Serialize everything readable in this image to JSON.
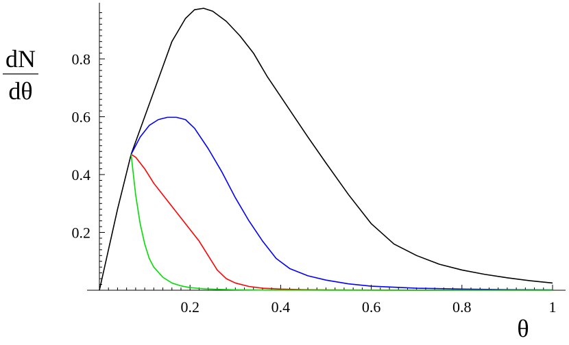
{
  "chart_data": {
    "type": "line",
    "title": "",
    "xlabel": "θ",
    "ylabel_top": "dN",
    "ylabel_bottom": "dθ",
    "xlim": [
      0,
      1
    ],
    "ylim": [
      0,
      0.98
    ],
    "xticks": [
      {
        "value": 0.2,
        "label": "0.2"
      },
      {
        "value": 0.4,
        "label": "0.4"
      },
      {
        "value": 0.6,
        "label": "0.6"
      },
      {
        "value": 0.8,
        "label": "0.8"
      },
      {
        "value": 1.0,
        "label": "1"
      }
    ],
    "yticks": [
      {
        "value": 0.2,
        "label": "0.2"
      },
      {
        "value": 0.4,
        "label": "0.4"
      },
      {
        "value": 0.6,
        "label": "0.6"
      },
      {
        "value": 0.8,
        "label": "0.8"
      }
    ],
    "grid": false,
    "legend": "none",
    "series": [
      {
        "color": "#000000",
        "x": [
          0,
          0.04,
          0.07,
          0.1,
          0.13,
          0.16,
          0.19,
          0.21,
          0.23,
          0.25,
          0.28,
          0.31,
          0.34,
          0.37,
          0.4,
          0.43,
          0.46,
          0.5,
          0.55,
          0.6,
          0.65,
          0.7,
          0.75,
          0.8,
          0.85,
          0.9,
          0.95,
          1.0
        ],
        "y": [
          0,
          0.28,
          0.47,
          0.6,
          0.73,
          0.86,
          0.94,
          0.97,
          0.975,
          0.965,
          0.93,
          0.88,
          0.82,
          0.74,
          0.67,
          0.6,
          0.53,
          0.44,
          0.33,
          0.23,
          0.16,
          0.12,
          0.09,
          0.07,
          0.055,
          0.043,
          0.033,
          0.025
        ]
      },
      {
        "color": "#0000ff",
        "x": [
          0.07,
          0.09,
          0.11,
          0.13,
          0.15,
          0.17,
          0.19,
          0.21,
          0.24,
          0.27,
          0.3,
          0.33,
          0.36,
          0.39,
          0.42,
          0.46,
          0.5,
          0.55,
          0.6,
          0.7,
          0.8,
          0.9,
          1.0
        ],
        "y": [
          0.47,
          0.53,
          0.57,
          0.59,
          0.598,
          0.598,
          0.59,
          0.56,
          0.49,
          0.41,
          0.32,
          0.24,
          0.17,
          0.11,
          0.075,
          0.05,
          0.035,
          0.022,
          0.014,
          0.007,
          0.004,
          0.002,
          0.001
        ]
      },
      {
        "color": "#ff0000",
        "x": [
          0.07,
          0.08,
          0.1,
          0.12,
          0.14,
          0.16,
          0.18,
          0.2,
          0.22,
          0.24,
          0.26,
          0.28,
          0.3,
          0.33,
          0.36,
          0.4,
          0.45,
          0.5,
          0.6,
          0.7,
          1.0
        ],
        "y": [
          0.47,
          0.46,
          0.42,
          0.37,
          0.33,
          0.29,
          0.25,
          0.21,
          0.17,
          0.12,
          0.07,
          0.04,
          0.025,
          0.013,
          0.007,
          0.004,
          0.002,
          0.001,
          0.0005,
          0.0002,
          0
        ]
      },
      {
        "color": "#00dd00",
        "x": [
          0.07,
          0.075,
          0.08,
          0.09,
          0.1,
          0.11,
          0.12,
          0.14,
          0.16,
          0.18,
          0.2,
          0.23,
          0.26,
          0.3,
          0.35,
          0.4,
          0.5,
          0.7,
          1.0
        ],
        "y": [
          0.47,
          0.4,
          0.33,
          0.23,
          0.16,
          0.11,
          0.08,
          0.045,
          0.025,
          0.015,
          0.009,
          0.005,
          0.003,
          0.0015,
          0.0008,
          0.0004,
          0.0001,
          0,
          0
        ]
      }
    ]
  }
}
